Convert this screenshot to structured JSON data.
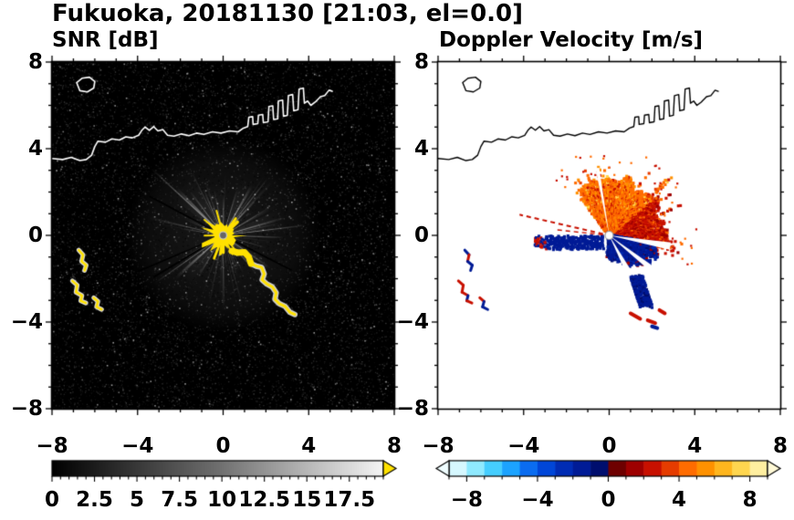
{
  "header": {
    "title": "Fukuoka, 20181130 [21:03, el=0.0]"
  },
  "panels": {
    "snr": {
      "title": "SNR [dB]"
    },
    "doppler": {
      "title": "Doppler Velocity [m/s]"
    }
  },
  "chart_data": [
    {
      "id": "snr",
      "type": "heatmap",
      "title": "SNR [dB]",
      "xlim": [
        -8,
        8
      ],
      "ylim": [
        -8,
        8
      ],
      "xticks": [
        -8,
        -4,
        0,
        4,
        8
      ],
      "yticks": [
        -8,
        -4,
        0,
        4,
        8
      ],
      "minor_tick_step": 1,
      "background": "#000000",
      "radar_center": [
        0,
        0
      ],
      "features": {
        "coast_color": "#ffffff",
        "clutter_color": "#ffe100",
        "beam_color": "#ffffff",
        "beams": [
          [
            130,
            3.2,
            14,
            0.1
          ],
          [
            60,
            2.8,
            12,
            0.1
          ],
          [
            15,
            3.0,
            10,
            0.1
          ],
          [
            -40,
            2.6,
            10,
            0.08
          ],
          [
            -135,
            2.8,
            13,
            0.1
          ],
          [
            100,
            2.4,
            9,
            0.08
          ],
          [
            137,
            4.6,
            0.5,
            0.85
          ],
          [
            135,
            3.1,
            1.6,
            0.7
          ],
          [
            127,
            2.6,
            1.0,
            0.6
          ],
          [
            113,
            2.4,
            1.2,
            0.65
          ],
          [
            101,
            2.1,
            0.9,
            0.55
          ],
          [
            90,
            1.9,
            1.0,
            0.5
          ],
          [
            73,
            2.3,
            1.1,
            0.6
          ],
          [
            60,
            2.7,
            1.5,
            0.75
          ],
          [
            52,
            3.4,
            0.5,
            0.75
          ],
          [
            47,
            2.2,
            1.0,
            0.55
          ],
          [
            31,
            2.5,
            1.0,
            0.6
          ],
          [
            16,
            2.9,
            1.2,
            0.65
          ],
          [
            7,
            3.9,
            0.6,
            0.8
          ],
          [
            -2,
            2.9,
            1.0,
            0.6
          ],
          [
            -16,
            2.1,
            0.8,
            0.45
          ],
          [
            -35,
            2.7,
            1.2,
            0.6
          ],
          [
            -48,
            2.3,
            1.0,
            0.55
          ],
          [
            -66,
            1.8,
            0.8,
            0.45
          ],
          [
            -84,
            1.6,
            0.8,
            0.4
          ],
          [
            -103,
            1.7,
            0.9,
            0.45
          ],
          [
            -121,
            2.3,
            1.1,
            0.6
          ],
          [
            -138,
            3.0,
            1.4,
            0.7
          ],
          [
            -145,
            3.9,
            0.5,
            0.75
          ],
          [
            -157,
            2.3,
            1.0,
            0.55
          ],
          [
            171,
            2.1,
            0.9,
            0.5
          ],
          [
            152,
            1.9,
            0.9,
            0.5
          ]
        ],
        "dark_rays": [
          [
            203,
            4.4
          ],
          [
            211,
            3.8
          ],
          [
            152,
            3.9
          ],
          [
            -27,
            3.6
          ]
        ]
      },
      "colorbar": {
        "range": [
          0,
          19.5
        ],
        "ticks": [
          0,
          2.5,
          5,
          7.5,
          10,
          12.5,
          15,
          17.5
        ],
        "minor_step": 0.5,
        "gradient": [
          "#000000",
          "#6e6e6e",
          "#f5f5f5"
        ],
        "over_arrow_color": "#ffe100"
      }
    },
    {
      "id": "doppler",
      "type": "heatmap",
      "title": "Doppler Velocity [m/s]",
      "xlim": [
        -8,
        8
      ],
      "ylim": [
        -8,
        8
      ],
      "xticks": [
        -8,
        -4,
        0,
        4,
        8
      ],
      "yticks": [
        -8,
        -4,
        0,
        4,
        8
      ],
      "minor_tick_step": 1,
      "background": "#ffffff",
      "radar_center": [
        0,
        0
      ],
      "features": {
        "fan": {
          "angle_range": [
            -18,
            128
          ],
          "base_radius": 2.0,
          "radius_jitter": 1.2,
          "red_below_deg": 40
        },
        "navy": {
          "angle_range": [
            -96,
            -8
          ],
          "profile": [
            [
              -96,
              0.85
            ],
            [
              -70,
              1.2
            ],
            [
              -45,
              1.85
            ],
            [
              -25,
              2.35
            ],
            [
              -12,
              1.9
            ],
            [
              -8,
              1.4
            ]
          ],
          "tail": {
            "from": [
              1.3,
              -1.9
            ],
            "to": [
              1.75,
              -3.3
            ],
            "width": 0.3
          }
        },
        "left_streak": {
          "x0": -3.45,
          "x1": -0.25,
          "y0": -0.62,
          "y1": -0.06,
          "red_tip_x": -2.9
        },
        "white_wedges": [
          [
            -10,
            3.5,
            2.9
          ],
          [
            -38,
            3,
            2.4
          ],
          [
            -62,
            4,
            2.0
          ],
          [
            100,
            1.6,
            3.2
          ]
        ],
        "red_rays": [
          [
            167,
            4.3,
            2
          ],
          [
            174,
            2.6,
            1.4
          ]
        ],
        "dashes": [
          [
            1.0,
            -3.6,
            1.45,
            -3.85,
            "red"
          ],
          [
            1.8,
            -3.92,
            2.15,
            -4.05,
            "red"
          ],
          [
            2.35,
            -3.45,
            2.6,
            -3.6,
            "red"
          ],
          [
            2.0,
            -4.2,
            2.25,
            -4.28,
            "navy"
          ]
        ],
        "colors": {
          "red": "#c81000",
          "dark_red": "#9e0000",
          "red_orange": "#e63c00",
          "orange": "#ff6c00",
          "light_orange": "#ff9100",
          "yellow": "#ffd64f",
          "navy": "#001b96",
          "navy_light": "#002cb4",
          "navy_dark": "#000e6e"
        }
      },
      "colorbar": {
        "range": [
          -9,
          9
        ],
        "ticks": [
          -8,
          -4,
          0,
          4,
          8
        ],
        "minor_step": 1,
        "segment_colors": [
          "#d6f8ff",
          "#8feaff",
          "#45ceff",
          "#1ca3ff",
          "#0a6cf0",
          "#0046d8",
          "#002cb4",
          "#001b96",
          "#000e6e",
          "#6e0000",
          "#9e0000",
          "#c81000",
          "#e63c00",
          "#ff6c00",
          "#ff9100",
          "#ffb61e",
          "#ffd64f",
          "#ffefa0"
        ],
        "under_arrow_color": "#effdff",
        "over_arrow_color": "#fff9d6"
      }
    }
  ],
  "geography": {
    "coastline": [
      [
        -8.0,
        3.55
      ],
      [
        -7.5,
        3.5
      ],
      [
        -7.1,
        3.6
      ],
      [
        -6.7,
        3.45
      ],
      [
        -6.4,
        3.5
      ],
      [
        -6.15,
        3.7
      ],
      [
        -6.0,
        4.1
      ],
      [
        -5.85,
        4.35
      ],
      [
        -5.5,
        4.3
      ],
      [
        -5.2,
        4.45
      ],
      [
        -4.85,
        4.4
      ],
      [
        -4.55,
        4.55
      ],
      [
        -4.25,
        4.5
      ],
      [
        -3.95,
        4.62
      ],
      [
        -3.8,
        4.85
      ],
      [
        -3.65,
        5.0
      ],
      [
        -3.45,
        4.85
      ],
      [
        -3.25,
        5.02
      ],
      [
        -3.05,
        4.82
      ],
      [
        -2.82,
        4.88
      ],
      [
        -2.6,
        4.62
      ],
      [
        -2.3,
        4.58
      ],
      [
        -1.95,
        4.68
      ],
      [
        -1.6,
        4.6
      ],
      [
        -1.25,
        4.72
      ],
      [
        -0.9,
        4.66
      ],
      [
        -0.5,
        4.78
      ],
      [
        -0.1,
        4.72
      ],
      [
        0.3,
        4.82
      ],
      [
        0.7,
        4.78
      ],
      [
        0.95,
        4.95
      ],
      [
        1.15,
        5.02
      ],
      [
        1.2,
        5.45
      ],
      [
        1.38,
        5.48
      ],
      [
        1.4,
        5.12
      ],
      [
        1.62,
        5.16
      ],
      [
        1.65,
        5.55
      ],
      [
        1.85,
        5.58
      ],
      [
        1.88,
        5.2
      ],
      [
        2.1,
        5.24
      ],
      [
        2.14,
        5.95
      ],
      [
        2.32,
        5.98
      ],
      [
        2.36,
        5.35
      ],
      [
        2.55,
        5.38
      ],
      [
        2.58,
        6.2
      ],
      [
        2.78,
        6.24
      ],
      [
        2.82,
        5.5
      ],
      [
        3.0,
        5.54
      ],
      [
        3.05,
        6.45
      ],
      [
        3.25,
        6.5
      ],
      [
        3.3,
        5.75
      ],
      [
        3.5,
        5.8
      ],
      [
        3.55,
        6.75
      ],
      [
        3.75,
        6.8
      ],
      [
        3.8,
        6.1
      ],
      [
        3.95,
        6.2
      ],
      [
        4.1,
        6.0
      ],
      [
        4.3,
        6.15
      ],
      [
        4.55,
        6.4
      ],
      [
        4.75,
        6.45
      ],
      [
        4.95,
        6.7
      ],
      [
        5.1,
        6.65
      ]
    ],
    "island": [
      [
        -6.85,
        7.05
      ],
      [
        -6.6,
        7.25
      ],
      [
        -6.25,
        7.3
      ],
      [
        -6.0,
        7.1
      ],
      [
        -6.05,
        6.8
      ],
      [
        -6.35,
        6.62
      ],
      [
        -6.7,
        6.68
      ],
      [
        -6.85,
        7.05
      ]
    ],
    "clutter_arc": [
      [
        0.4,
        -0.72
      ],
      [
        0.7,
        -0.8
      ],
      [
        1.0,
        -0.78
      ],
      [
        1.2,
        -1.0
      ],
      [
        1.3,
        -1.3
      ],
      [
        1.55,
        -1.42
      ],
      [
        1.8,
        -1.48
      ],
      [
        1.92,
        -1.78
      ],
      [
        1.82,
        -2.05
      ],
      [
        2.05,
        -2.25
      ],
      [
        2.3,
        -2.38
      ],
      [
        2.48,
        -2.65
      ],
      [
        2.42,
        -2.95
      ],
      [
        2.62,
        -3.15
      ],
      [
        2.9,
        -3.28
      ],
      [
        3.12,
        -3.55
      ],
      [
        3.35,
        -3.65
      ]
    ],
    "clutter_islands": [
      [
        [
          -6.75,
          -0.68
        ],
        [
          -6.55,
          -0.9
        ],
        [
          -6.62,
          -1.2
        ],
        [
          -6.4,
          -1.38
        ],
        [
          -6.48,
          -1.62
        ]
      ],
      [
        [
          -7.05,
          -2.1
        ],
        [
          -6.82,
          -2.3
        ],
        [
          -6.88,
          -2.62
        ],
        [
          -6.6,
          -2.78
        ],
        [
          -6.66,
          -3.02
        ],
        [
          -6.42,
          -3.12
        ]
      ],
      [
        [
          -6.05,
          -2.88
        ],
        [
          -5.85,
          -3.05
        ],
        [
          -5.92,
          -3.3
        ],
        [
          -5.68,
          -3.42
        ]
      ]
    ]
  }
}
